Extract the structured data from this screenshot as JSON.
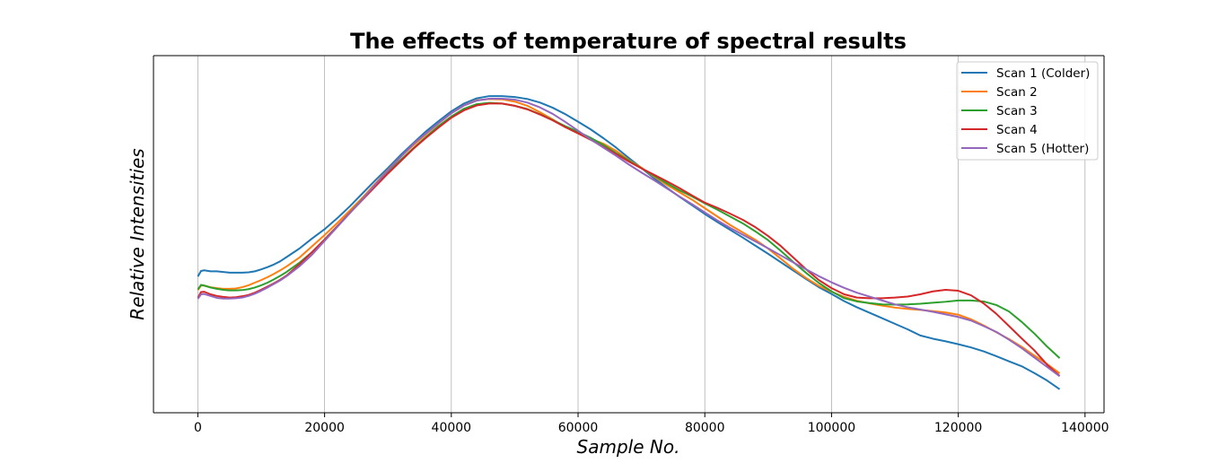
{
  "chart_data": {
    "type": "line",
    "title": "The effects of temperature of spectral results",
    "xlabel": "Sample No.",
    "ylabel": "Relative Intensities",
    "xlim": [
      -7000,
      143000
    ],
    "ylim": [
      0,
      1
    ],
    "x_ticks": [
      "0",
      "20000",
      "40000",
      "60000",
      "80000",
      "100000",
      "120000",
      "140000"
    ],
    "x_tick_values": [
      0,
      20000,
      40000,
      60000,
      80000,
      100000,
      120000,
      140000
    ],
    "y_ticks_shown": false,
    "grid": "vertical",
    "legend_position": "top-right",
    "series": [
      {
        "name": "Scan 1 (Colder)",
        "color": "#1f77b4",
        "x": [
          0,
          500,
          1000,
          2000,
          3000,
          4000,
          5000,
          6000,
          7000,
          8000,
          9000,
          10000,
          11000,
          12000,
          13000,
          14000,
          16000,
          18000,
          20000,
          22000,
          24000,
          26000,
          28000,
          30000,
          32000,
          34000,
          36000,
          38000,
          40000,
          42000,
          44000,
          46000,
          48000,
          50000,
          52000,
          54000,
          56000,
          58000,
          60000,
          62000,
          64000,
          66000,
          68000,
          70000,
          72000,
          74000,
          76000,
          78000,
          80000,
          82000,
          84000,
          86000,
          88000,
          90000,
          92000,
          94000,
          96000,
          98000,
          100000,
          102000,
          104000,
          106000,
          108000,
          110000,
          112000,
          114000,
          116000,
          118000,
          120000,
          122000,
          124000,
          126000,
          128000,
          130000,
          132000,
          134000,
          136000
        ],
        "values": [
          0.368,
          0.385,
          0.387,
          0.384,
          0.384,
          0.382,
          0.38,
          0.38,
          0.38,
          0.381,
          0.384,
          0.39,
          0.397,
          0.405,
          0.415,
          0.428,
          0.454,
          0.485,
          0.514,
          0.548,
          0.585,
          0.625,
          0.665,
          0.703,
          0.743,
          0.78,
          0.816,
          0.848,
          0.878,
          0.902,
          0.918,
          0.925,
          0.925,
          0.922,
          0.916,
          0.905,
          0.889,
          0.869,
          0.846,
          0.822,
          0.795,
          0.766,
          0.734,
          0.703,
          0.671,
          0.642,
          0.614,
          0.588,
          0.561,
          0.536,
          0.512,
          0.488,
          0.463,
          0.438,
          0.412,
          0.386,
          0.36,
          0.335,
          0.314,
          0.292,
          0.273,
          0.256,
          0.239,
          0.222,
          0.205,
          0.186,
          0.176,
          0.168,
          0.159,
          0.149,
          0.137,
          0.122,
          0.106,
          0.091,
          0.07,
          0.047,
          0.02
        ]
      },
      {
        "name": "Scan 2",
        "color": "#ff7f0e",
        "x": [
          0,
          500,
          1000,
          2000,
          3000,
          4000,
          5000,
          6000,
          7000,
          8000,
          9000,
          10000,
          11000,
          12000,
          13000,
          14000,
          16000,
          18000,
          20000,
          22000,
          24000,
          26000,
          28000,
          30000,
          32000,
          34000,
          36000,
          38000,
          40000,
          42000,
          44000,
          46000,
          48000,
          50000,
          52000,
          54000,
          56000,
          58000,
          60000,
          62000,
          64000,
          66000,
          68000,
          70000,
          72000,
          74000,
          76000,
          78000,
          80000,
          82000,
          84000,
          86000,
          88000,
          90000,
          92000,
          94000,
          96000,
          98000,
          100000,
          102000,
          104000,
          106000,
          108000,
          110000,
          112000,
          114000,
          116000,
          118000,
          120000,
          122000,
          124000,
          126000,
          128000,
          130000,
          132000,
          134000,
          136000
        ],
        "values": [
          0.326,
          0.34,
          0.34,
          0.335,
          0.332,
          0.33,
          0.33,
          0.331,
          0.335,
          0.341,
          0.349,
          0.357,
          0.366,
          0.376,
          0.387,
          0.399,
          0.426,
          0.461,
          0.496,
          0.533,
          0.572,
          0.612,
          0.655,
          0.697,
          0.737,
          0.773,
          0.807,
          0.841,
          0.872,
          0.896,
          0.912,
          0.916,
          0.915,
          0.908,
          0.895,
          0.875,
          0.853,
          0.829,
          0.81,
          0.793,
          0.778,
          0.756,
          0.728,
          0.704,
          0.676,
          0.651,
          0.628,
          0.605,
          0.579,
          0.553,
          0.527,
          0.504,
          0.481,
          0.454,
          0.423,
          0.391,
          0.363,
          0.339,
          0.321,
          0.305,
          0.293,
          0.285,
          0.278,
          0.272,
          0.268,
          0.265,
          0.261,
          0.257,
          0.25,
          0.236,
          0.217,
          0.196,
          0.175,
          0.151,
          0.124,
          0.098,
          0.069
        ]
      },
      {
        "name": "Scan 3",
        "color": "#2ca02c",
        "x": [
          0,
          500,
          1000,
          2000,
          3000,
          4000,
          5000,
          6000,
          7000,
          8000,
          9000,
          10000,
          11000,
          12000,
          13000,
          14000,
          16000,
          18000,
          20000,
          22000,
          24000,
          26000,
          28000,
          30000,
          32000,
          34000,
          36000,
          38000,
          40000,
          42000,
          44000,
          46000,
          48000,
          50000,
          52000,
          54000,
          56000,
          58000,
          60000,
          62000,
          64000,
          66000,
          68000,
          70000,
          72000,
          74000,
          76000,
          78000,
          80000,
          82000,
          84000,
          86000,
          88000,
          90000,
          92000,
          94000,
          96000,
          98000,
          100000,
          102000,
          104000,
          106000,
          108000,
          110000,
          112000,
          114000,
          116000,
          118000,
          120000,
          122000,
          124000,
          126000,
          128000,
          130000,
          132000,
          134000,
          136000
        ],
        "values": [
          0.328,
          0.342,
          0.34,
          0.334,
          0.33,
          0.327,
          0.325,
          0.325,
          0.326,
          0.329,
          0.334,
          0.341,
          0.349,
          0.359,
          0.37,
          0.382,
          0.41,
          0.443,
          0.482,
          0.523,
          0.565,
          0.608,
          0.649,
          0.69,
          0.728,
          0.764,
          0.799,
          0.833,
          0.862,
          0.886,
          0.9,
          0.904,
          0.902,
          0.895,
          0.885,
          0.869,
          0.851,
          0.832,
          0.815,
          0.796,
          0.774,
          0.749,
          0.726,
          0.702,
          0.679,
          0.656,
          0.634,
          0.615,
          0.594,
          0.574,
          0.553,
          0.532,
          0.507,
          0.48,
          0.447,
          0.412,
          0.379,
          0.348,
          0.322,
          0.301,
          0.291,
          0.286,
          0.282,
          0.281,
          0.282,
          0.284,
          0.287,
          0.29,
          0.294,
          0.294,
          0.291,
          0.28,
          0.26,
          0.228,
          0.192,
          0.152,
          0.116
        ]
      },
      {
        "name": "Scan 4",
        "color": "#d62728",
        "x": [
          0,
          500,
          1000,
          2000,
          3000,
          4000,
          5000,
          6000,
          7000,
          8000,
          9000,
          10000,
          11000,
          12000,
          13000,
          14000,
          16000,
          18000,
          20000,
          22000,
          24000,
          26000,
          28000,
          30000,
          32000,
          34000,
          36000,
          38000,
          40000,
          42000,
          44000,
          46000,
          48000,
          50000,
          52000,
          54000,
          56000,
          58000,
          60000,
          62000,
          64000,
          66000,
          68000,
          70000,
          72000,
          74000,
          76000,
          78000,
          80000,
          82000,
          84000,
          86000,
          88000,
          90000,
          92000,
          94000,
          96000,
          98000,
          100000,
          102000,
          104000,
          106000,
          108000,
          110000,
          112000,
          114000,
          116000,
          118000,
          120000,
          122000,
          124000,
          126000,
          128000,
          130000,
          132000,
          134000,
          136000
        ],
        "values": [
          0.302,
          0.32,
          0.321,
          0.313,
          0.308,
          0.305,
          0.303,
          0.304,
          0.307,
          0.311,
          0.318,
          0.327,
          0.337,
          0.347,
          0.358,
          0.371,
          0.405,
          0.443,
          0.482,
          0.523,
          0.565,
          0.605,
          0.646,
          0.686,
          0.724,
          0.762,
          0.796,
          0.828,
          0.858,
          0.881,
          0.896,
          0.902,
          0.902,
          0.895,
          0.884,
          0.868,
          0.85,
          0.829,
          0.81,
          0.79,
          0.768,
          0.746,
          0.723,
          0.702,
          0.682,
          0.662,
          0.641,
          0.618,
          0.596,
          0.58,
          0.562,
          0.543,
          0.52,
          0.493,
          0.462,
          0.426,
          0.39,
          0.357,
          0.332,
          0.313,
          0.303,
          0.301,
          0.301,
          0.303,
          0.306,
          0.313,
          0.322,
          0.327,
          0.324,
          0.31,
          0.285,
          0.253,
          0.215,
          0.177,
          0.14,
          0.096,
          0.061
        ]
      },
      {
        "name": "Scan 5 (Hotter)",
        "color": "#9467bd",
        "x": [
          0,
          500,
          1000,
          2000,
          3000,
          4000,
          5000,
          6000,
          7000,
          8000,
          9000,
          10000,
          11000,
          12000,
          13000,
          14000,
          16000,
          18000,
          20000,
          22000,
          24000,
          26000,
          28000,
          30000,
          32000,
          34000,
          36000,
          38000,
          40000,
          42000,
          44000,
          46000,
          48000,
          50000,
          52000,
          54000,
          56000,
          58000,
          60000,
          62000,
          64000,
          66000,
          68000,
          70000,
          72000,
          74000,
          76000,
          78000,
          80000,
          82000,
          84000,
          86000,
          88000,
          90000,
          92000,
          94000,
          96000,
          98000,
          100000,
          102000,
          104000,
          106000,
          108000,
          110000,
          112000,
          114000,
          116000,
          118000,
          120000,
          122000,
          124000,
          126000,
          128000,
          130000,
          132000,
          134000,
          136000
        ],
        "values": [
          0.299,
          0.313,
          0.314,
          0.308,
          0.302,
          0.3,
          0.3,
          0.301,
          0.303,
          0.308,
          0.315,
          0.324,
          0.334,
          0.345,
          0.356,
          0.369,
          0.399,
          0.435,
          0.478,
          0.521,
          0.564,
          0.607,
          0.652,
          0.695,
          0.737,
          0.777,
          0.81,
          0.842,
          0.872,
          0.896,
          0.911,
          0.917,
          0.917,
          0.914,
          0.905,
          0.89,
          0.87,
          0.845,
          0.818,
          0.791,
          0.766,
          0.741,
          0.714,
          0.689,
          0.665,
          0.64,
          0.615,
          0.591,
          0.566,
          0.541,
          0.518,
          0.497,
          0.476,
          0.455,
          0.433,
          0.411,
          0.39,
          0.369,
          0.35,
          0.333,
          0.318,
          0.306,
          0.294,
          0.282,
          0.273,
          0.266,
          0.259,
          0.251,
          0.243,
          0.232,
          0.215,
          0.197,
          0.173,
          0.147,
          0.118,
          0.089,
          0.06
        ]
      }
    ]
  }
}
